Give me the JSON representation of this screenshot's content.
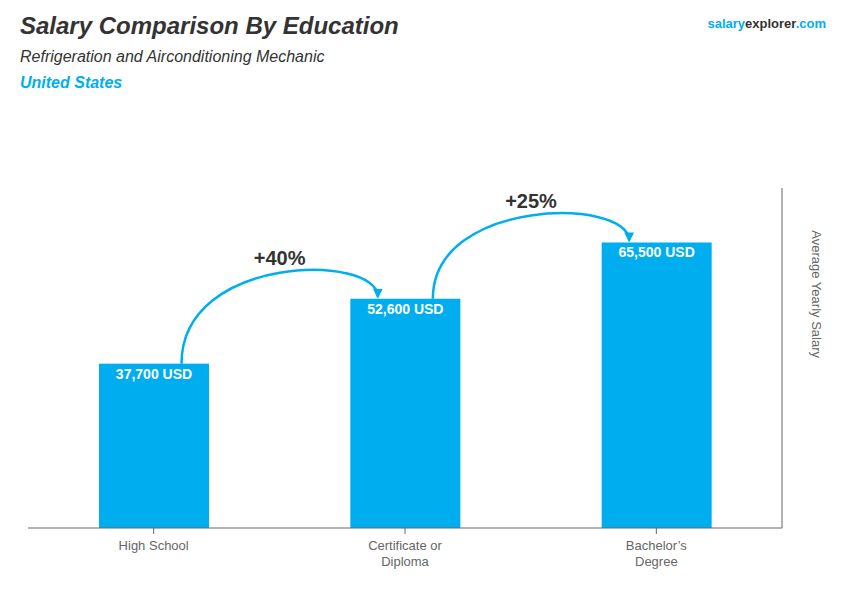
{
  "chart_data": {
    "type": "bar",
    "title": "Salary Comparison By Education",
    "subtitle": "Refrigeration and Airconditioning Mechanic",
    "ylabel": "Average Yearly Salary",
    "categories": [
      "High School",
      "Certificate or\nDiploma",
      "Bachelor’s\nDegree"
    ],
    "values": [
      37700,
      52600,
      65500
    ],
    "value_labels": [
      "37,700 USD",
      "52,600 USD",
      "65,500 USD"
    ],
    "data_labels": true,
    "color": "#00AEEF",
    "ylim": [
      0,
      78000
    ],
    "tick_labels": "x",
    "grid": false,
    "annotations": [
      "United States",
      "salary",
      "explorer",
      ".com",
      "+40%",
      "+25%"
    ]
  }
}
